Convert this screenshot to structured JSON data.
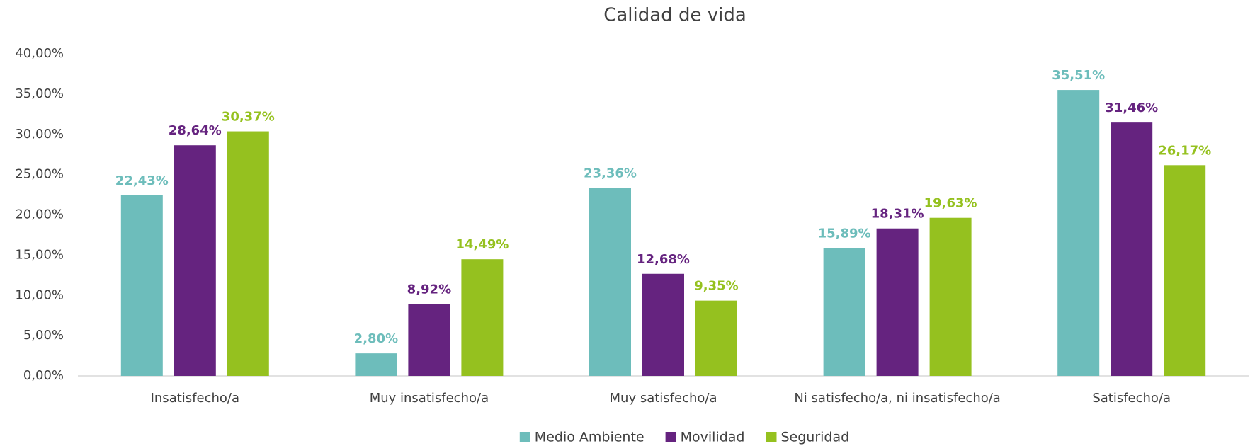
{
  "chart_data": {
    "type": "bar",
    "title": "Calidad de vida",
    "categories": [
      "Insatisfecho/a",
      "Muy insatisfecho/a",
      "Muy satisfecho/a",
      "Ni satisfecho/a, ni insatisfecho/a",
      "Satisfecho/a"
    ],
    "series": [
      {
        "name": "Medio Ambiente",
        "color": "#6dbdbb",
        "values": [
          22.43,
          2.8,
          23.36,
          15.89,
          35.51
        ],
        "value_labels": [
          "22,43%",
          "2,80%",
          "23,36%",
          "15,89%",
          "35,51%"
        ]
      },
      {
        "name": "Movilidad",
        "color": "#65237f",
        "values": [
          28.64,
          8.92,
          12.68,
          18.31,
          31.46
        ],
        "value_labels": [
          "28,64%",
          "8,92%",
          "12,68%",
          "18,31%",
          "31,46%"
        ]
      },
      {
        "name": "Seguridad",
        "color": "#95c11f",
        "values": [
          30.37,
          14.49,
          9.35,
          19.63,
          26.17
        ],
        "value_labels": [
          "30,37%",
          "14,49%",
          "9,35%",
          "19,63%",
          "26,17%"
        ]
      }
    ],
    "ylim": [
      0,
      40
    ],
    "yticks": [
      {
        "value": 0,
        "label": "0,00%"
      },
      {
        "value": 5,
        "label": "5,00%"
      },
      {
        "value": 10,
        "label": "10,00%"
      },
      {
        "value": 15,
        "label": "15,00%"
      },
      {
        "value": 20,
        "label": "20,00%"
      },
      {
        "value": 25,
        "label": "25,00%"
      },
      {
        "value": 30,
        "label": "30,00%"
      },
      {
        "value": 35,
        "label": "35,00%"
      },
      {
        "value": 40,
        "label": "40,00%"
      }
    ],
    "legend": "bottom"
  }
}
